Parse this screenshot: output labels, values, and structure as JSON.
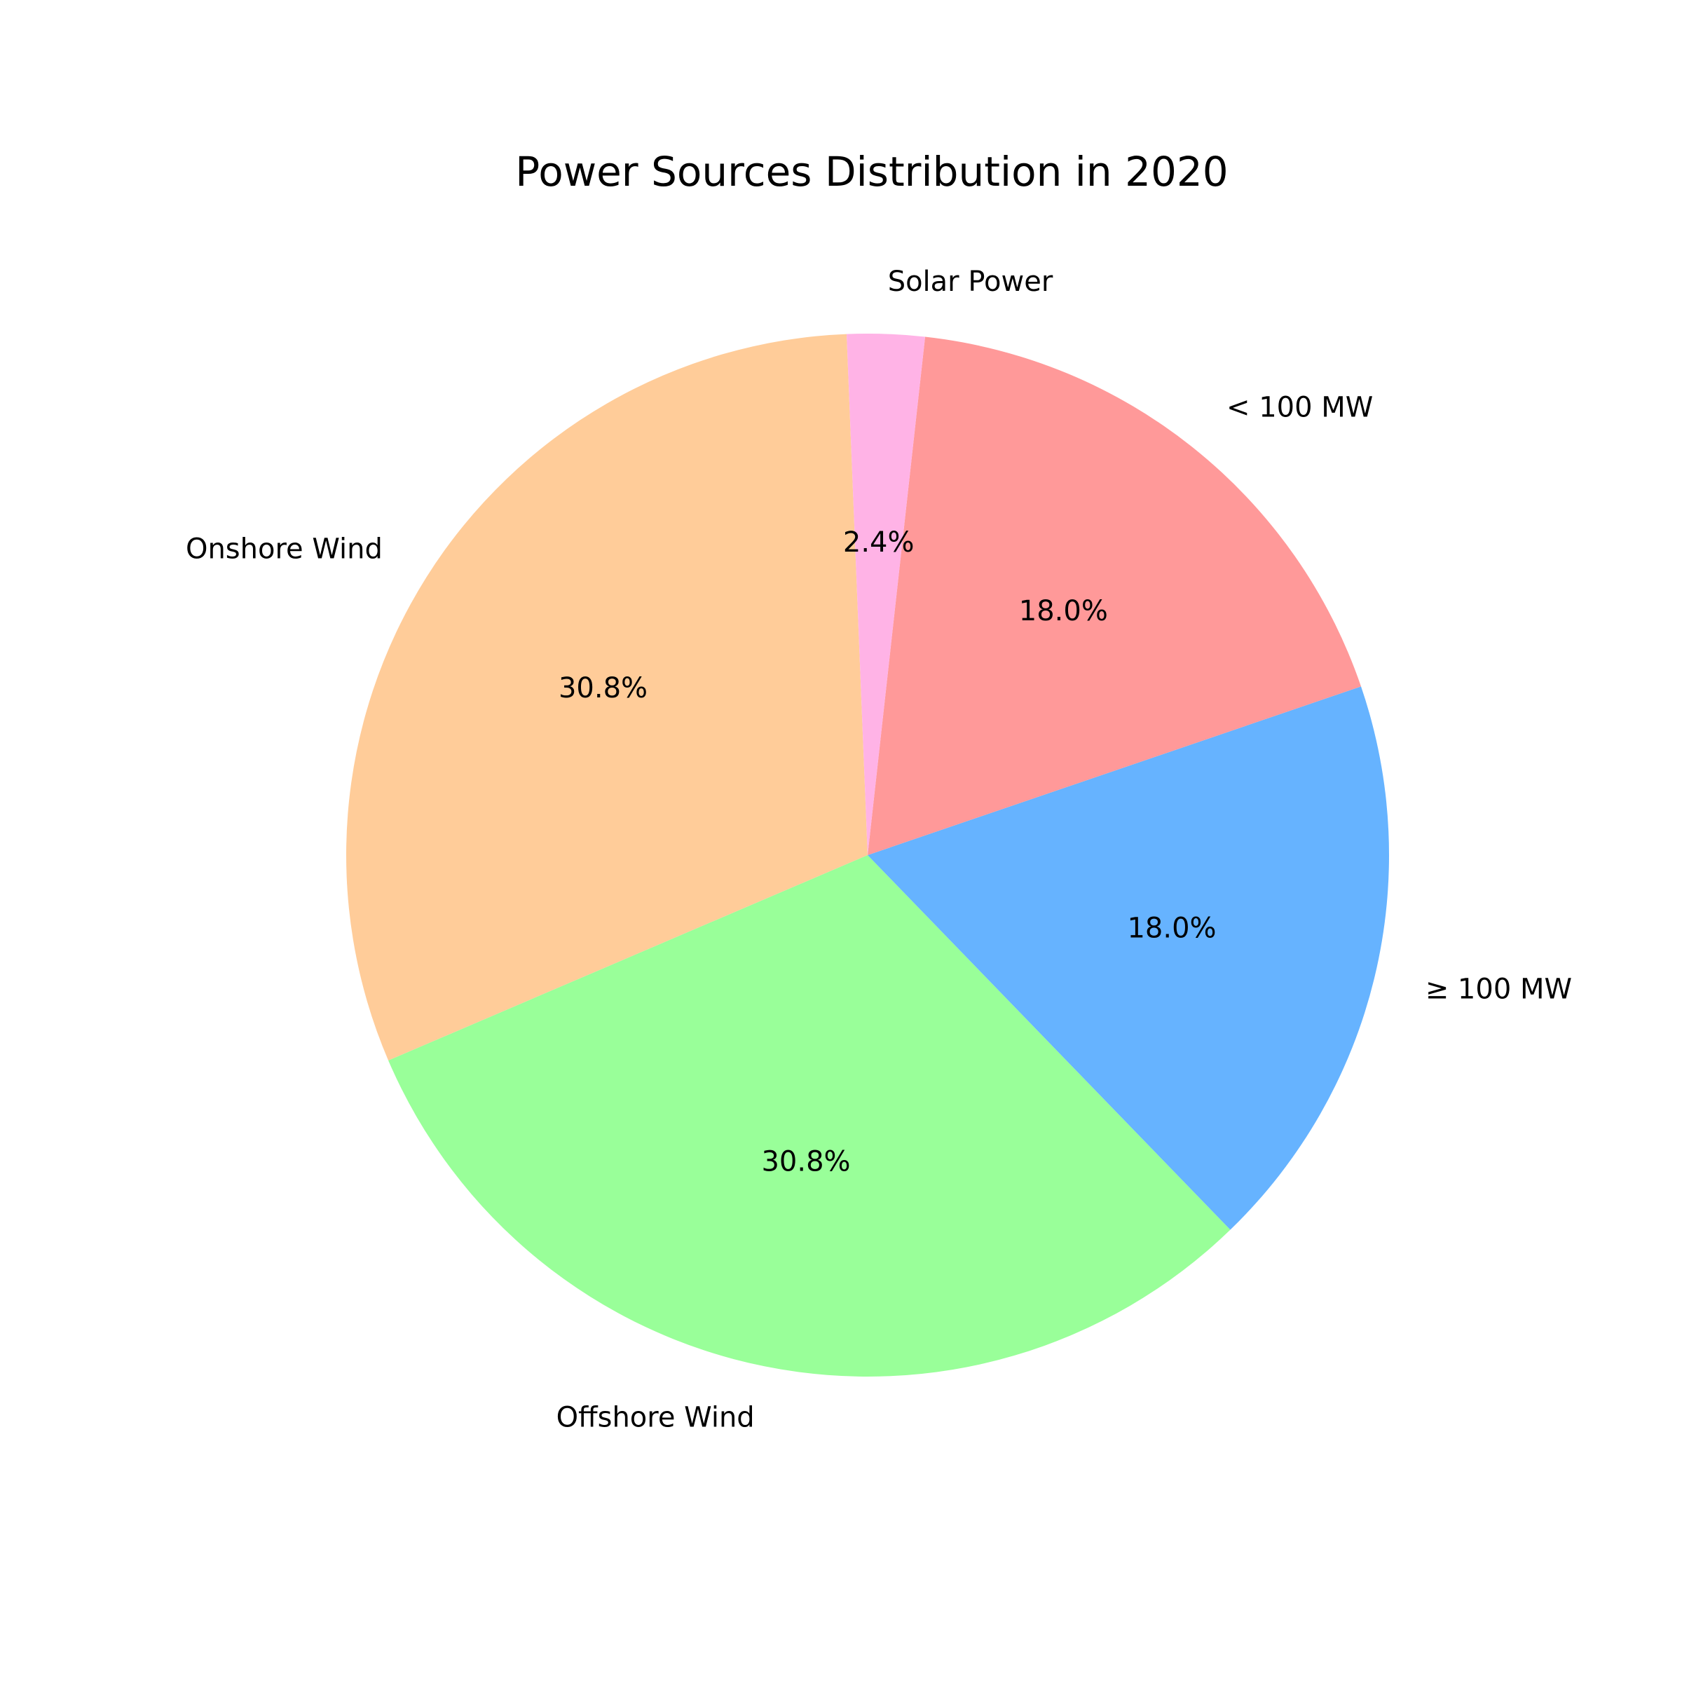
{
  "chart_data": {
    "type": "pie",
    "title": "Power Sources Distribution in 2020",
    "slices": [
      {
        "label": "Onshore Wind",
        "value": 30.8,
        "pct_label": "30.8%",
        "color": "#ffcc99"
      },
      {
        "label": "Offshore Wind",
        "value": 30.8,
        "pct_label": "30.8%",
        "color": "#99ff99"
      },
      {
        "label": "≥ 100 MW",
        "value": 18.0,
        "pct_label": "18.0%",
        "color": "#66b3ff"
      },
      {
        "label": "< 100 MW",
        "value": 18.0,
        "pct_label": "18.0%",
        "color": "#ff9999"
      },
      {
        "label": "Solar Power",
        "value": 2.4,
        "pct_label": "2.4%",
        "color": "#ffb3e6"
      }
    ],
    "legend": "none"
  }
}
